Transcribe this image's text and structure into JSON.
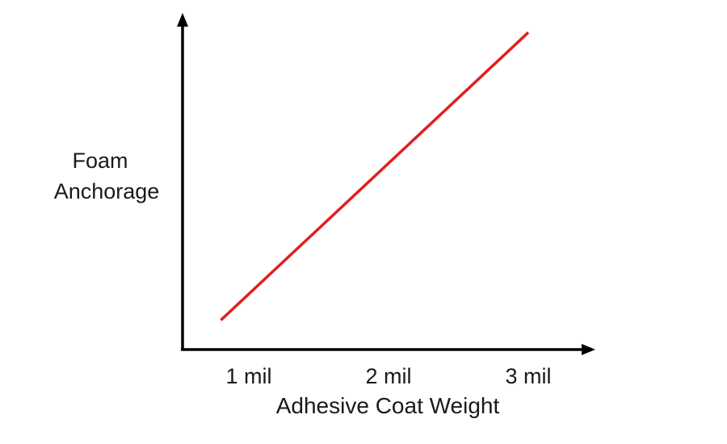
{
  "chart_data": {
    "type": "line",
    "title": "",
    "xlabel": "Adhesive Coat Weight",
    "ylabel_lines": [
      "Foam",
      "Anchorage"
    ],
    "x_ticks": [
      "1 mil",
      "2 mil",
      "3 mil"
    ],
    "xlim": [
      0.5,
      3.5
    ],
    "ylim": [
      0,
      1
    ],
    "grid": false,
    "series": [
      {
        "color": "#e02020",
        "points": [
          {
            "x": 0.8,
            "y": 0.09
          },
          {
            "x": 3.0,
            "y": 0.97
          }
        ]
      }
    ]
  }
}
